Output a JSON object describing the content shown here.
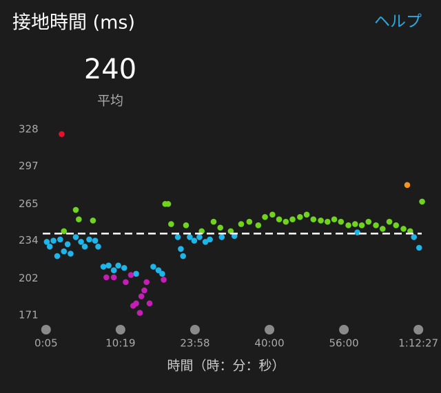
{
  "header": {
    "title": "接地時間 (ms)",
    "help_link": "ヘルプ"
  },
  "chart_data": {
    "type": "scatter",
    "average": 240,
    "average_label": "平均",
    "xlabel": "時間（時：分：秒）",
    "xlim": [
      -0.1,
      5.1
    ],
    "xticks": [
      {
        "value": 0,
        "label": "0:05"
      },
      {
        "value": 1,
        "label": "10:19"
      },
      {
        "value": 2,
        "label": "23:58"
      },
      {
        "value": 3,
        "label": "40:00"
      },
      {
        "value": 4,
        "label": "56:00"
      },
      {
        "value": 5,
        "label": "1:12:27"
      }
    ],
    "ylim": [
      168,
      333
    ],
    "yticks": [
      171,
      202,
      234,
      265,
      297,
      328
    ],
    "series": [
      {
        "color": "#e8112d",
        "x": [
          0.21
        ],
        "values": [
          324
        ]
      },
      {
        "color": "#f7941d",
        "x": [
          4.85
        ],
        "values": [
          281
        ]
      },
      {
        "color": "#1fb5e8",
        "x": [
          0.01,
          0.05,
          0.1,
          0.15,
          0.19,
          0.24,
          0.29,
          0.33,
          0.4,
          0.47,
          0.52,
          0.58,
          0.66,
          0.7,
          0.77,
          0.84,
          0.91,
          0.97,
          1.05,
          1.21,
          1.44,
          1.51,
          1.56,
          1.77,
          1.81,
          1.84,
          1.93,
          1.99,
          2.06,
          2.14,
          2.2,
          2.36,
          2.53,
          4.18,
          4.94,
          5.01
        ],
        "values": [
          233,
          229,
          234,
          221,
          235,
          225,
          231,
          223,
          237,
          233,
          229,
          235,
          234,
          229,
          212,
          213,
          209,
          213,
          211,
          206,
          212,
          209,
          206,
          237,
          227,
          221,
          237,
          234,
          237,
          233,
          235,
          237,
          238,
          241,
          237,
          228
        ]
      },
      {
        "color": "#c41fb5",
        "x": [
          0.81,
          0.91,
          1.07,
          1.14,
          1.17,
          1.21,
          1.26,
          1.28,
          1.32,
          1.35,
          1.39,
          1.58
        ],
        "values": [
          203,
          203,
          199,
          205,
          179,
          181,
          173,
          187,
          192,
          199,
          181,
          201
        ]
      },
      {
        "color": "#6fd31f",
        "x": [
          0.24,
          0.4,
          0.44,
          0.63,
          1.6,
          1.64,
          1.68,
          1.88,
          2.09,
          2.25,
          2.34,
          2.48,
          2.62,
          2.73,
          2.85,
          2.94,
          3.04,
          3.13,
          3.22,
          3.31,
          3.41,
          3.5,
          3.59,
          3.69,
          3.78,
          3.87,
          3.96,
          4.06,
          4.15,
          4.24,
          4.33,
          4.43,
          4.52,
          4.61,
          4.7,
          4.8,
          4.89,
          5.05
        ],
        "values": [
          242,
          260,
          252,
          251,
          265,
          265,
          248,
          247,
          242,
          250,
          245,
          242,
          248,
          250,
          247,
          254,
          256,
          252,
          250,
          252,
          254,
          256,
          252,
          251,
          250,
          252,
          250,
          247,
          248,
          247,
          250,
          247,
          244,
          250,
          247,
          244,
          242,
          267
        ]
      }
    ]
  }
}
